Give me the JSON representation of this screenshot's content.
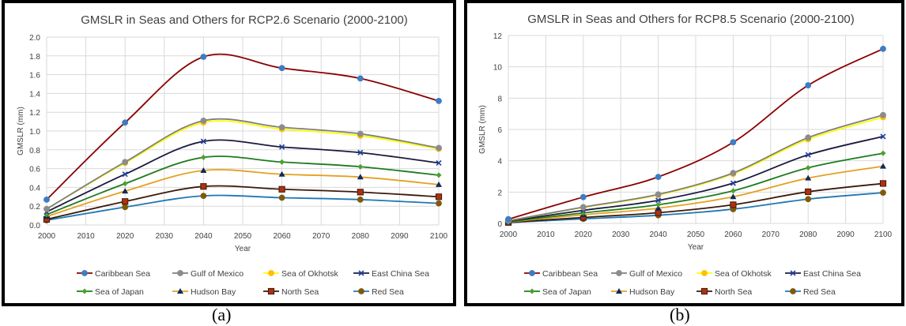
{
  "chart_data": [
    {
      "type": "line",
      "title": "GMSLR in Seas and Others for RCP2.6 Scenario (2000-2100)",
      "xlabel": "Year",
      "ylabel": "GMSLR (mm)",
      "caption": "(a)",
      "xlim": [
        2000,
        2100
      ],
      "ylim": [
        0,
        2.0
      ],
      "xticks": [
        "2000",
        "2010",
        "2020",
        "2030",
        "2040",
        "2050",
        "2060",
        "2070",
        "2080",
        "2090",
        "2100"
      ],
      "yticks": [
        "0.0",
        "0.2",
        "0.4",
        "0.6",
        "0.8",
        "1.0",
        "1.2",
        "1.4",
        "1.6",
        "1.8",
        "2.0"
      ],
      "grid": true,
      "legend_position": "bottom",
      "x": [
        2000,
        2020,
        2040,
        2060,
        2080,
        2100
      ],
      "series": [
        {
          "name": "Caribbean Sea",
          "line_color": "#8B0000",
          "marker": "circle",
          "marker_color": "#3C7DC4",
          "values": [
            0.27,
            1.09,
            1.79,
            1.67,
            1.56,
            1.32
          ]
        },
        {
          "name": "Gulf of Mexico",
          "line_color": "#7F7F7F",
          "marker": "circle",
          "marker_color": "#8C8C8C",
          "values": [
            0.17,
            0.67,
            1.11,
            1.04,
            0.97,
            0.82
          ]
        },
        {
          "name": "Sea of Okhotsk",
          "line_color": "#FFFF00",
          "marker": "circle",
          "marker_color": "#FFC000",
          "values": [
            0.17,
            0.66,
            1.09,
            1.02,
            0.95,
            0.81
          ]
        },
        {
          "name": "East China Sea",
          "line_color": "#1A1A40",
          "marker": "x",
          "marker_color": "#1F3FA0",
          "values": [
            0.14,
            0.54,
            0.89,
            0.83,
            0.77,
            0.66
          ]
        },
        {
          "name": "Sea of Japan",
          "line_color": "#1E7B1E",
          "marker": "diamond",
          "marker_color": "#4CA02C",
          "values": [
            0.11,
            0.44,
            0.72,
            0.67,
            0.62,
            0.53
          ]
        },
        {
          "name": "Hudson Bay",
          "line_color": "#E5A020",
          "marker": "triangle",
          "marker_color": "#0F2A5C",
          "values": [
            0.09,
            0.36,
            0.58,
            0.54,
            0.51,
            0.43
          ]
        },
        {
          "name": "North Sea",
          "line_color": "#3A1A0A",
          "marker": "square",
          "marker_color": "#B03010",
          "values": [
            0.06,
            0.25,
            0.41,
            0.38,
            0.35,
            0.3
          ]
        },
        {
          "name": "Red Sea",
          "line_color": "#1F77B4",
          "marker": "circle",
          "marker_color": "#7F5A0A",
          "values": [
            0.05,
            0.19,
            0.31,
            0.29,
            0.27,
            0.23
          ]
        }
      ]
    },
    {
      "type": "line",
      "title": "GMSLR in Seas and Others for RCP8.5 Scenario (2000-2100)",
      "xlabel": "Year",
      "ylabel": "GMSLR (mm)",
      "caption": "(b)",
      "xlim": [
        2000,
        2100
      ],
      "ylim": [
        0,
        12
      ],
      "xticks": [
        "2000",
        "2010",
        "2020",
        "2030",
        "2040",
        "2050",
        "2060",
        "2070",
        "2080",
        "2090",
        "2100"
      ],
      "yticks": [
        "0",
        "2",
        "4",
        "6",
        "8",
        "10",
        "12"
      ],
      "grid": true,
      "legend_position": "bottom",
      "x": [
        2000,
        2020,
        2040,
        2060,
        2080,
        2100
      ],
      "series": [
        {
          "name": "Caribbean Sea",
          "line_color": "#8B0000",
          "marker": "circle",
          "marker_color": "#3C7DC4",
          "values": [
            0.27,
            1.68,
            2.97,
            5.18,
            8.82,
            11.15
          ]
        },
        {
          "name": "Gulf of Mexico",
          "line_color": "#7F7F7F",
          "marker": "circle",
          "marker_color": "#8C8C8C",
          "values": [
            0.17,
            1.04,
            1.85,
            3.22,
            5.48,
            6.92
          ]
        },
        {
          "name": "Sea of Okhotsk",
          "line_color": "#FFFF00",
          "marker": "circle",
          "marker_color": "#FFC000",
          "values": [
            0.17,
            1.02,
            1.81,
            3.16,
            5.37,
            6.78
          ]
        },
        {
          "name": "East China Sea",
          "line_color": "#1A1A40",
          "marker": "x",
          "marker_color": "#1F3FA0",
          "values": [
            0.14,
            0.83,
            1.47,
            2.57,
            4.38,
            5.55
          ]
        },
        {
          "name": "Sea of Japan",
          "line_color": "#1E7B1E",
          "marker": "diamond",
          "marker_color": "#4CA02C",
          "values": [
            0.11,
            0.67,
            1.19,
            2.08,
            3.55,
            4.48
          ]
        },
        {
          "name": "Hudson Bay",
          "line_color": "#E5A020",
          "marker": "triangle",
          "marker_color": "#0F2A5C",
          "values": [
            0.09,
            0.55,
            0.97,
            1.7,
            2.89,
            3.65
          ]
        },
        {
          "name": "North Sea",
          "line_color": "#3A1A0A",
          "marker": "square",
          "marker_color": "#B03010",
          "values": [
            0.06,
            0.38,
            0.68,
            1.19,
            2.02,
            2.55
          ]
        },
        {
          "name": "Red Sea",
          "line_color": "#1F77B4",
          "marker": "circle",
          "marker_color": "#7F5A0A",
          "values": [
            0.05,
            0.29,
            0.52,
            0.91,
            1.55,
            1.96
          ]
        }
      ]
    }
  ]
}
